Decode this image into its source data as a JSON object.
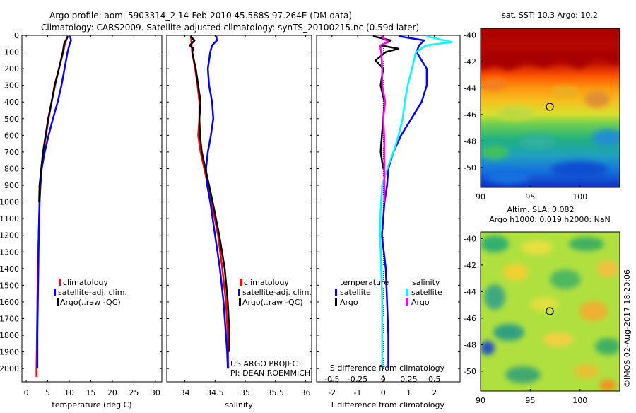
{
  "header": {
    "line1": "Argo profile: aoml 5903314_2 14-Feb-2010 45.588S 97.264E (DM data)",
    "line2": "Climatology: CARS2009. Satellite-adjusted climatology: synTS_20100215.nc (0.59d later)"
  },
  "colors": {
    "climatology": "#ff0000",
    "satellite": "#0000ff",
    "argo": "#000000",
    "sat_salinity": "#00ffff",
    "argo_salinity": "#ff00ff"
  },
  "credits": {
    "project": "US ARGO PROJECT",
    "pi": "PI: DEAN ROEMMICH",
    "stamp": "©IMOS 02-Aug-2017 18:20:06"
  },
  "chart_data": [
    {
      "type": "line",
      "id": "temperature",
      "xlabel": "temperature (deg C)",
      "ylabel": "",
      "xlim": [
        -1,
        31.5
      ],
      "ylim": [
        2080,
        0
      ],
      "xticks": [
        "0",
        "5",
        "10",
        "15",
        "20",
        "25",
        "30"
      ],
      "xtick_values": [
        0,
        5,
        10,
        15,
        20,
        25,
        30
      ],
      "yticks": [
        "0",
        "100",
        "200",
        "300",
        "400",
        "500",
        "600",
        "700",
        "800",
        "900",
        "1000",
        "1100",
        "1200",
        "1300",
        "1400",
        "1500",
        "1600",
        "1700",
        "1800",
        "1900",
        "2000"
      ],
      "legend": [
        "climatology",
        "satellite-adj. clim.",
        "Argo(..raw -QC)"
      ],
      "series": [
        {
          "name": "climatology",
          "color": "#ff0000",
          "depth": [
            5,
            50,
            100,
            200,
            300,
            400,
            500,
            600,
            700,
            800,
            900,
            1000,
            1200,
            1400,
            1600,
            1800,
            2000,
            2050
          ],
          "values": [
            9.6,
            9.0,
            8.6,
            7.6,
            6.7,
            5.9,
            5.2,
            4.6,
            4.0,
            3.6,
            3.3,
            3.1,
            2.9,
            2.7,
            2.6,
            2.5,
            2.4,
            2.4
          ]
        },
        {
          "name": "satellite-adj. clim.",
          "color": "#0000ff",
          "depth": [
            5,
            30,
            50,
            100,
            200,
            300,
            400,
            500,
            600,
            700,
            800,
            900,
            1000,
            1200,
            1400,
            1600,
            1800,
            1900,
            2000
          ],
          "values": [
            10.2,
            10.4,
            10.1,
            9.6,
            8.9,
            8.2,
            7.3,
            6.2,
            5.2,
            4.3,
            3.6,
            3.3,
            3.1,
            2.9,
            2.8,
            2.7,
            2.6,
            2.6,
            2.6
          ]
        },
        {
          "name": "Argo(..raw -QC)",
          "color": "#000000",
          "depth": [
            5,
            50,
            100,
            200,
            300,
            400,
            500,
            600,
            700,
            800,
            900,
            1000
          ],
          "values": [
            9.7,
            8.8,
            8.5,
            7.6,
            6.6,
            5.9,
            5.1,
            4.5,
            3.9,
            3.5,
            3.1,
            3.0
          ]
        }
      ]
    },
    {
      "type": "line",
      "id": "salinity",
      "xlabel": "salinity",
      "ylabel": "",
      "xlim": [
        33.7,
        36.1
      ],
      "ylim": [
        2080,
        0
      ],
      "xticks": [
        "34",
        "34.5",
        "35",
        "35.5",
        "36"
      ],
      "xtick_values": [
        34,
        34.5,
        35,
        35.5,
        36
      ],
      "legend": [
        "climatology",
        "satellite-adj. clim.",
        "Argo(..raw -QC)"
      ],
      "series": [
        {
          "name": "climatology",
          "color": "#ff0000",
          "depth": [
            5,
            100,
            200,
            300,
            400,
            500,
            600,
            700,
            800,
            900,
            1000,
            1200,
            1400,
            1600,
            1800,
            2000
          ],
          "values": [
            34.1,
            34.12,
            34.17,
            34.21,
            34.24,
            34.24,
            34.22,
            34.26,
            34.32,
            34.38,
            34.44,
            34.55,
            34.62,
            34.68,
            34.71,
            34.72
          ]
        },
        {
          "name": "satellite-adj. clim.",
          "color": "#0000ff",
          "depth": [
            5,
            30,
            60,
            100,
            200,
            300,
            400,
            500,
            600,
            700,
            800,
            900,
            1000,
            1200,
            1400,
            1600,
            1800,
            1900,
            2000
          ],
          "values": [
            34.52,
            34.53,
            34.45,
            34.42,
            34.38,
            34.4,
            34.45,
            34.47,
            34.43,
            34.38,
            34.35,
            34.37,
            34.42,
            34.5,
            34.58,
            34.64,
            34.68,
            34.7,
            34.71
          ]
        },
        {
          "name": "Argo(..raw -QC)",
          "color": "#000000",
          "depth": [
            5,
            30,
            60,
            80,
            100,
            200,
            300,
            400,
            500,
            600,
            700,
            800,
            900,
            1000,
            1200,
            1400,
            1600,
            1800,
            1900
          ],
          "values": [
            34.09,
            34.16,
            34.08,
            34.14,
            34.12,
            34.18,
            34.22,
            34.26,
            34.24,
            34.25,
            34.28,
            34.34,
            34.4,
            34.46,
            34.57,
            34.66,
            34.71,
            34.74,
            34.73
          ]
        }
      ]
    },
    {
      "type": "line",
      "id": "difference",
      "xlabel": "T difference from climatology",
      "xlabel2": "S difference from climatology",
      "xlim": [
        -2.6,
        3.0
      ],
      "ylim": [
        2080,
        0
      ],
      "xticks": [
        "-2",
        "-1",
        "0",
        "1",
        "2"
      ],
      "xtick_values": [
        -2,
        -1,
        0,
        1,
        2
      ],
      "sticks": [
        "-0.5",
        "-0.25",
        "0",
        "0.25",
        "0.5"
      ],
      "stick_values": [
        -0.5,
        -0.25,
        0,
        0.25,
        0.5
      ],
      "legend_groups": [
        "temperature",
        "salinity"
      ],
      "legend": [
        "satellite",
        "Argo",
        "satellite",
        "Argo"
      ],
      "series": [
        {
          "name": "satellite",
          "group": "temperature",
          "color": "#0000ff",
          "depth": [
            5,
            30,
            60,
            100,
            150,
            200,
            300,
            400,
            500,
            600,
            700,
            800,
            900,
            1000,
            1100,
            1200,
            1400,
            1600,
            1800,
            2000
          ],
          "values": [
            0.6,
            1.6,
            1.4,
            1.3,
            1.5,
            1.7,
            1.7,
            1.5,
            1.1,
            0.7,
            0.4,
            0.2,
            0.15,
            0.05,
            0,
            -0.05,
            0.1,
            0.15,
            0.2,
            0.2
          ]
        },
        {
          "name": "Argo",
          "group": "temperature",
          "color": "#000000",
          "depth": [
            5,
            30,
            60,
            80,
            100,
            150,
            200,
            300,
            400,
            500,
            600,
            700,
            800
          ],
          "values": [
            -0.4,
            0.3,
            -0.1,
            0.6,
            0.1,
            -0.3,
            0.0,
            -0.1,
            0.05,
            0.0,
            -0.05,
            -0.1,
            0.0
          ]
        },
        {
          "name": "satellite",
          "group": "salinity",
          "color": "#00ffff",
          "depth": [
            5,
            40,
            60,
            100,
            200,
            300,
            400,
            500,
            600,
            700,
            800,
            900,
            1000,
            1100,
            1200,
            1400,
            1600,
            1800,
            2000
          ],
          "values": [
            0.42,
            0.67,
            0.42,
            0.32,
            0.28,
            0.24,
            0.21,
            0.19,
            0.15,
            0.1,
            0.04,
            -0.01,
            -0.02,
            -0.03,
            -0.03,
            -0.02,
            -0.01,
            -0.01,
            -0.01
          ]
        },
        {
          "name": "Argo",
          "group": "salinity",
          "color": "#ff00ff",
          "depth": [
            5,
            40,
            60,
            100,
            200,
            300,
            400,
            500,
            600,
            700,
            800,
            900,
            1000
          ],
          "values": [
            -0.02,
            0.05,
            -0.03,
            -0.02,
            -0.01,
            -0.01,
            0.02,
            0.0,
            0.01,
            0.01,
            0.01,
            0.01,
            0.01
          ]
        }
      ]
    },
    {
      "type": "heatmap",
      "id": "sst_map",
      "title": "sat. SST: 10.3 Argo: 10.2",
      "xlim": [
        90,
        104
      ],
      "ylim": [
        -51.5,
        -39.5
      ],
      "xticks": [
        "90",
        "95",
        "100"
      ],
      "xtick_values": [
        90,
        95,
        100
      ],
      "yticks": [
        "-40",
        "-42",
        "-44",
        "-46",
        "-48",
        "-50"
      ],
      "ytick_values": [
        -40,
        -42,
        -44,
        -46,
        -48,
        -50
      ],
      "marker": {
        "lon": 97.26,
        "lat": -45.59
      }
    },
    {
      "type": "heatmap",
      "id": "sla_map",
      "title": "Altim. SLA: 0.082",
      "title2": "Argo h1000: 0.019 h2000: NaN",
      "xlim": [
        90,
        104
      ],
      "ylim": [
        -51.5,
        -39.5
      ],
      "xticks": [
        "90",
        "95",
        "100"
      ],
      "xtick_values": [
        90,
        95,
        100
      ],
      "yticks": [
        "-40",
        "-42",
        "-44",
        "-46",
        "-48",
        "-50"
      ],
      "ytick_values": [
        -40,
        -42,
        -44,
        -46,
        -48,
        -50
      ],
      "marker": {
        "lon": 97.26,
        "lat": -45.59
      }
    }
  ]
}
